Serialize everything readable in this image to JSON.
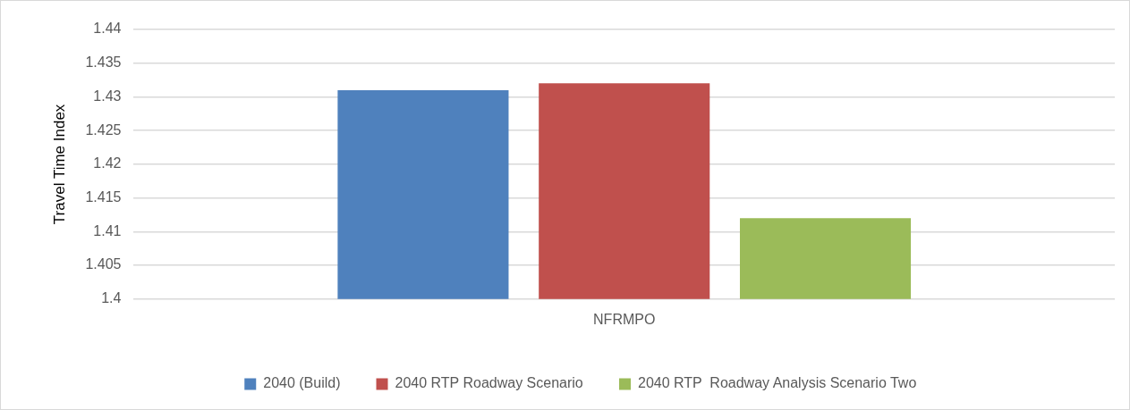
{
  "chart_data": {
    "type": "bar",
    "ylabel": "Travel Time Index",
    "categories": [
      "NFRMPO"
    ],
    "series": [
      {
        "name": "2040 (Build)",
        "color": "#4f81bd",
        "values": [
          1.431
        ]
      },
      {
        "name": "2040 RTP Roadway Scenario",
        "color": "#c0504d",
        "values": [
          1.432
        ]
      },
      {
        "name": "2040 RTP  Roadway Analysis Scenario Two",
        "color": "#9bbb59",
        "values": [
          1.412
        ]
      }
    ],
    "ylim": [
      1.4,
      1.44
    ],
    "yticks": [
      1.4,
      1.405,
      1.41,
      1.415,
      1.42,
      1.425,
      1.43,
      1.435,
      1.44
    ],
    "grid": "y",
    "legend": "bottom"
  }
}
